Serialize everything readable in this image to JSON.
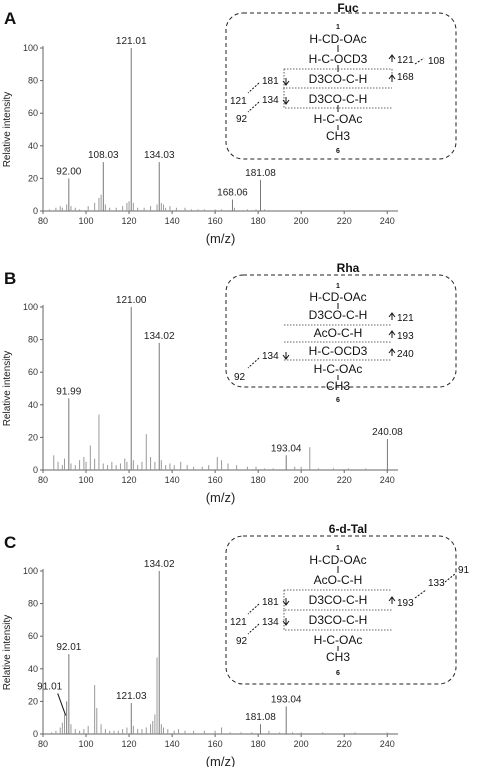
{
  "axis_common": {
    "x_ticks": [
      "80",
      "100",
      "120",
      "140",
      "160",
      "180",
      "200",
      "220",
      "240"
    ],
    "y_ticks": [
      "0",
      "20",
      "40",
      "60",
      "80",
      "100"
    ],
    "ylabel": "Relative intensity",
    "xlabel": "(m/z)"
  },
  "chart_data": [
    {
      "type": "bar",
      "panel": "A",
      "title": "Fuc",
      "xlim": [
        80,
        245
      ],
      "ylim": [
        0,
        100
      ],
      "xlabel": "(m/z)",
      "ylabel": "Relative intensity",
      "labeled_peaks": [
        {
          "x": 92.0,
          "y": 20,
          "label": "92.00"
        },
        {
          "x": 108.03,
          "y": 30,
          "label": "108.03"
        },
        {
          "x": 121.01,
          "y": 100,
          "label": "121.01"
        },
        {
          "x": 134.03,
          "y": 30,
          "label": "134.03"
        },
        {
          "x": 168.06,
          "y": 7,
          "label": "168.06"
        },
        {
          "x": 181.08,
          "y": 19,
          "label": "181.08"
        }
      ],
      "minor_peaks": [
        [
          83,
          1
        ],
        [
          86,
          2
        ],
        [
          88,
          3
        ],
        [
          89,
          2
        ],
        [
          91,
          4
        ],
        [
          93,
          3
        ],
        [
          95,
          2
        ],
        [
          97,
          1
        ],
        [
          101,
          3
        ],
        [
          104,
          5
        ],
        [
          106,
          8
        ],
        [
          107,
          10
        ],
        [
          109,
          4
        ],
        [
          111,
          2
        ],
        [
          114,
          2
        ],
        [
          117,
          3
        ],
        [
          119,
          5
        ],
        [
          120,
          6
        ],
        [
          122,
          5
        ],
        [
          124,
          2
        ],
        [
          127,
          2
        ],
        [
          130,
          3
        ],
        [
          133,
          4
        ],
        [
          135,
          5
        ],
        [
          136,
          4
        ],
        [
          137,
          2
        ],
        [
          139,
          3
        ],
        [
          142,
          2
        ],
        [
          146,
          2
        ],
        [
          149,
          1
        ],
        [
          152,
          1
        ],
        [
          155,
          1
        ],
        [
          160,
          1
        ],
        [
          163,
          1
        ],
        [
          169,
          2
        ],
        [
          175,
          1
        ],
        [
          179,
          1
        ],
        [
          183,
          1
        ]
      ],
      "structure": {
        "top_number": "1",
        "bottom_number": "6",
        "rows": [
          "H-CD-OAc",
          "H-C-OCD3",
          "D3CO-C-H",
          "D3CO-C-H",
          "H-C-OAc",
          "CH3"
        ],
        "fragments": [
          "181",
          "134",
          "121",
          "92",
          "121",
          "168",
          "108"
        ]
      }
    },
    {
      "type": "bar",
      "panel": "B",
      "title": "Rha",
      "xlim": [
        80,
        245
      ],
      "ylim": [
        0,
        100
      ],
      "xlabel": "(m/z)",
      "ylabel": "Relative intensity",
      "labeled_peaks": [
        {
          "x": 91.99,
          "y": 44,
          "label": "91.99"
        },
        {
          "x": 121.0,
          "y": 100,
          "label": "121.00"
        },
        {
          "x": 134.02,
          "y": 78,
          "label": "134.02"
        },
        {
          "x": 193.04,
          "y": 9,
          "label": "193.04"
        },
        {
          "x": 240.08,
          "y": 19,
          "label": "240.08"
        }
      ],
      "minor_peaks": [
        [
          85,
          9
        ],
        [
          87,
          5
        ],
        [
          89,
          3
        ],
        [
          90,
          7
        ],
        [
          93,
          4
        ],
        [
          95,
          3
        ],
        [
          97,
          6
        ],
        [
          99,
          8
        ],
        [
          100,
          5
        ],
        [
          102,
          15
        ],
        [
          104,
          7
        ],
        [
          106,
          34
        ],
        [
          108,
          4
        ],
        [
          110,
          3
        ],
        [
          112,
          5
        ],
        [
          114,
          3
        ],
        [
          116,
          4
        ],
        [
          118,
          7
        ],
        [
          119,
          5
        ],
        [
          122,
          6
        ],
        [
          124,
          3
        ],
        [
          126,
          5
        ],
        [
          128,
          22
        ],
        [
          130,
          8
        ],
        [
          132,
          5
        ],
        [
          135,
          6
        ],
        [
          137,
          3
        ],
        [
          139,
          4
        ],
        [
          141,
          3
        ],
        [
          144,
          5
        ],
        [
          147,
          3
        ],
        [
          150,
          2
        ],
        [
          154,
          2
        ],
        [
          157,
          3
        ],
        [
          161,
          8
        ],
        [
          163,
          6
        ],
        [
          166,
          4
        ],
        [
          170,
          3
        ],
        [
          175,
          2
        ],
        [
          179,
          2
        ],
        [
          183,
          1
        ],
        [
          187,
          1
        ],
        [
          197,
          2
        ],
        [
          200,
          2
        ],
        [
          204,
          14
        ],
        [
          208,
          1
        ],
        [
          215,
          1
        ],
        [
          222,
          1
        ],
        [
          230,
          1
        ]
      ],
      "structure": {
        "top_number": "1",
        "bottom_number": "6",
        "rows": [
          "H-CD-OAc",
          "D3CO-C-H",
          "AcO-C-H",
          "H-C-OCD3",
          "H-C-OAc",
          "CH3"
        ],
        "fragments": [
          "121",
          "193",
          "240",
          "134",
          "92"
        ]
      }
    },
    {
      "type": "bar",
      "panel": "C",
      "title": "6-d-Tal",
      "xlim": [
        80,
        245
      ],
      "ylim": [
        0,
        100
      ],
      "xlabel": "(m/z)",
      "ylabel": "Relative intensity",
      "labeled_peaks": [
        {
          "x": 91.01,
          "y": 20,
          "label": "91.01"
        },
        {
          "x": 92.01,
          "y": 49,
          "label": "92.01"
        },
        {
          "x": 121.03,
          "y": 19,
          "label": "121.03"
        },
        {
          "x": 134.02,
          "y": 100,
          "label": "134.02"
        },
        {
          "x": 181.08,
          "y": 6,
          "label": "181.08"
        },
        {
          "x": 193.04,
          "y": 17,
          "label": "193.04"
        }
      ],
      "minor_peaks": [
        [
          84,
          1
        ],
        [
          86,
          2
        ],
        [
          88,
          4
        ],
        [
          89,
          7
        ],
        [
          90,
          12
        ],
        [
          93,
          6
        ],
        [
          95,
          3
        ],
        [
          97,
          2
        ],
        [
          99,
          3
        ],
        [
          101,
          5
        ],
        [
          104,
          30
        ],
        [
          105,
          16
        ],
        [
          107,
          6
        ],
        [
          109,
          3
        ],
        [
          111,
          2
        ],
        [
          113,
          2
        ],
        [
          115,
          2
        ],
        [
          117,
          3
        ],
        [
          119,
          4
        ],
        [
          122,
          5
        ],
        [
          124,
          3
        ],
        [
          126,
          3
        ],
        [
          128,
          4
        ],
        [
          130,
          6
        ],
        [
          131,
          8
        ],
        [
          132,
          12
        ],
        [
          133,
          47
        ],
        [
          135,
          6
        ],
        [
          136,
          4
        ],
        [
          138,
          3
        ],
        [
          141,
          2
        ],
        [
          143,
          3
        ],
        [
          146,
          2
        ],
        [
          150,
          2
        ],
        [
          155,
          2
        ],
        [
          160,
          2
        ],
        [
          163,
          4
        ],
        [
          167,
          1
        ],
        [
          172,
          1
        ],
        [
          177,
          1
        ],
        [
          185,
          2
        ],
        [
          190,
          1
        ],
        [
          196,
          1
        ],
        [
          200,
          1
        ],
        [
          210,
          1
        ],
        [
          225,
          1
        ],
        [
          240,
          1
        ]
      ],
      "structure": {
        "top_number": "1",
        "bottom_number": "6",
        "rows": [
          "H-CD-OAc",
          "AcO-C-H",
          "D3CO-C-H",
          "D3CO-C-H",
          "H-C-OAc",
          "CH3"
        ],
        "fragments": [
          "181",
          "134",
          "121",
          "92",
          "193",
          "133",
          "91"
        ]
      }
    }
  ]
}
